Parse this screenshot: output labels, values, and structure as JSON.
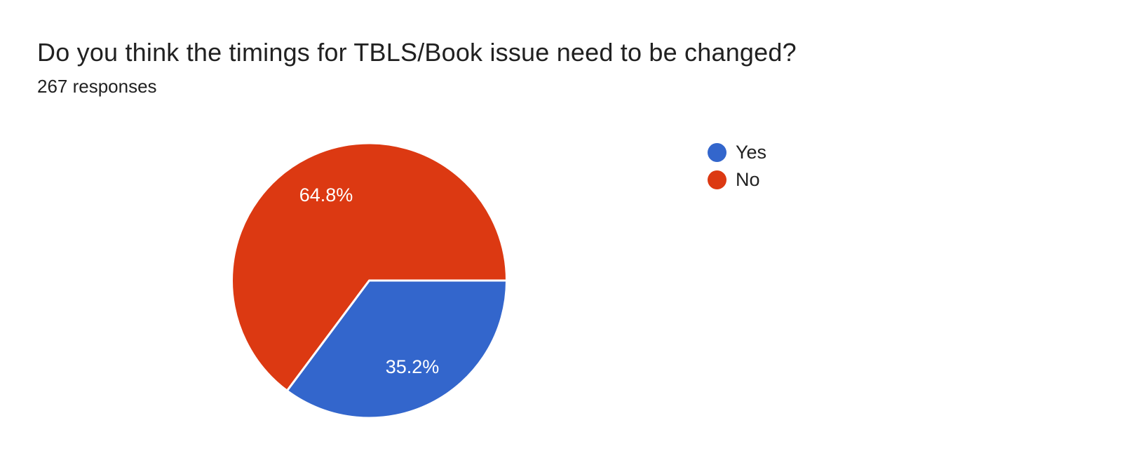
{
  "theme": {
    "background": "#ffffff",
    "text_color": "#212121",
    "separator_color": "#ffffff"
  },
  "chart_data": {
    "type": "pie",
    "title": "Do you think the timings for TBLS/Book issue need to be changed?",
    "subtitle": "267 responses",
    "responses_count": 267,
    "categories": [
      "Yes",
      "No"
    ],
    "values": [
      35.2,
      64.8
    ],
    "slice_labels": [
      "35.2%",
      "64.8%"
    ],
    "colors": [
      "#3366cc",
      "#dc3912"
    ],
    "label_color": "#ffffff",
    "legend_position": "right",
    "start_angle_deg": 0,
    "direction": "clockwise",
    "legend": [
      {
        "label": "Yes",
        "color": "#3366cc"
      },
      {
        "label": "No",
        "color": "#dc3912"
      }
    ]
  }
}
